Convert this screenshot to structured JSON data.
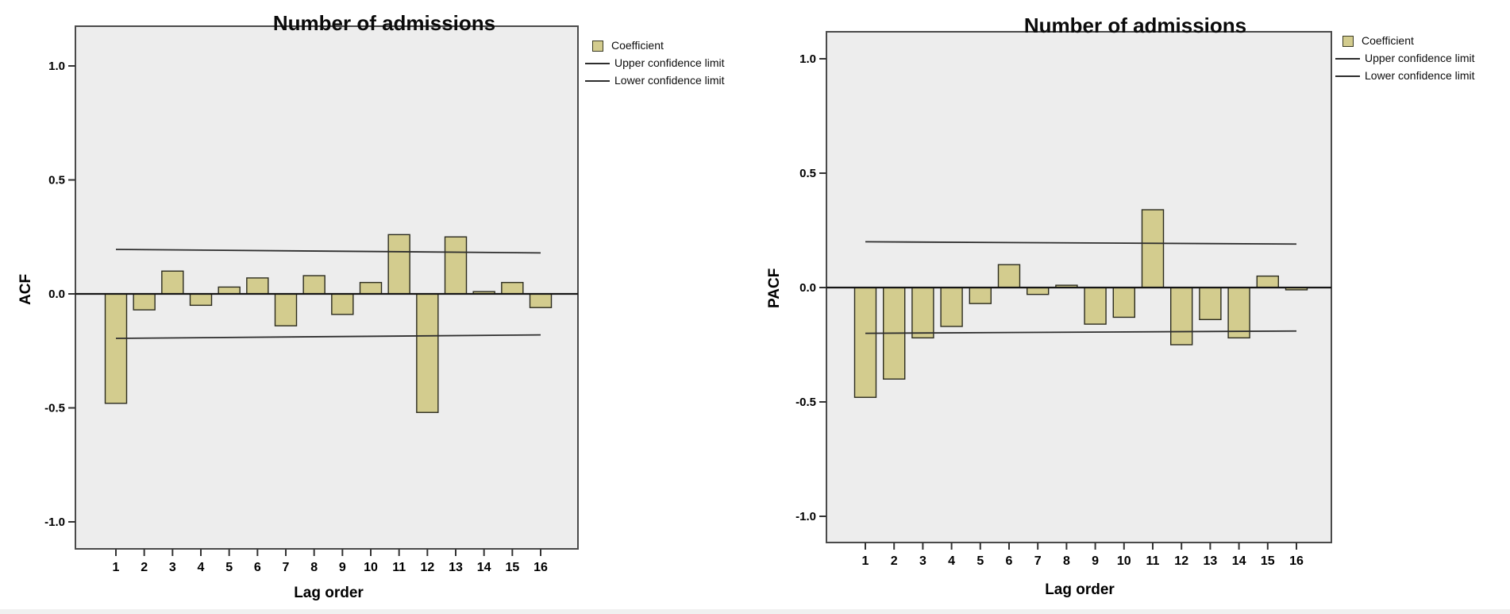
{
  "figure": {
    "background": "#ffffff"
  },
  "colors": {
    "bar_fill": "#d3cc8e",
    "bar_border": "#2b2b1e",
    "plot_background": "#ededed",
    "plot_border": "#4a4a4a",
    "confidence_line": "#2e2e2e",
    "zero_line": "#161616",
    "tick": "#333333",
    "text": "#000000"
  },
  "chart_data": [
    {
      "type": "bar",
      "title": "Number of admissions",
      "ylabel": "ACF",
      "xlabel": "Lag order",
      "categories": [
        "1",
        "2",
        "3",
        "4",
        "5",
        "6",
        "7",
        "8",
        "9",
        "10",
        "11",
        "12",
        "13",
        "14",
        "15",
        "16"
      ],
      "values": [
        -0.48,
        -0.07,
        0.1,
        -0.05,
        0.03,
        0.07,
        -0.14,
        0.08,
        -0.09,
        0.05,
        0.26,
        -0.52,
        0.25,
        0.01,
        0.05,
        -0.06
      ],
      "upper_confidence_limit": {
        "label": "Upper confidence limit",
        "start": 0.195,
        "end": 0.18
      },
      "lower_confidence_limit": {
        "label": "Lower confidence limit",
        "start": -0.195,
        "end": -0.18
      },
      "yticks": [
        {
          "value": 1.0,
          "label": "1.0"
        },
        {
          "value": 0.5,
          "label": "0.5"
        },
        {
          "value": 0.0,
          "label": "0.0"
        },
        {
          "value": -0.5,
          "label": "-0.5"
        },
        {
          "value": -1.0,
          "label": "-1.0"
        }
      ],
      "ylim": [
        -1.15,
        1.17
      ],
      "grid": false,
      "legend": {
        "position": "right",
        "items": [
          {
            "swatch": "box",
            "label": "Coefficient"
          },
          {
            "swatch": "line",
            "label": "Upper confidence limit"
          },
          {
            "swatch": "line",
            "label": "Lower confidence limit"
          }
        ]
      }
    },
    {
      "type": "bar",
      "title": "Number of admissions",
      "ylabel": "PACF",
      "xlabel": "Lag order",
      "categories": [
        "1",
        "2",
        "3",
        "4",
        "5",
        "6",
        "7",
        "8",
        "9",
        "10",
        "11",
        "12",
        "13",
        "14",
        "15",
        "16"
      ],
      "values": [
        -0.48,
        -0.4,
        -0.22,
        -0.17,
        -0.07,
        0.1,
        -0.03,
        0.01,
        -0.16,
        -0.13,
        0.34,
        -0.25,
        -0.14,
        -0.22,
        0.05,
        -0.01
      ],
      "upper_confidence_limit": {
        "label": "Upper confidence limit",
        "start": 0.2,
        "end": 0.19
      },
      "lower_confidence_limit": {
        "label": "Lower confidence limit",
        "start": -0.2,
        "end": -0.19
      },
      "yticks": [
        {
          "value": 1.0,
          "label": "1.0"
        },
        {
          "value": 0.5,
          "label": "0.5"
        },
        {
          "value": 0.0,
          "label": "0.0"
        },
        {
          "value": -0.5,
          "label": "-0.5"
        },
        {
          "value": -1.0,
          "label": "-1.0"
        }
      ],
      "ylim": [
        -1.12,
        1.12
      ],
      "grid": false,
      "legend": {
        "position": "right",
        "items": [
          {
            "swatch": "box",
            "label": "Coefficient"
          },
          {
            "swatch": "line",
            "label": "Upper confidence limit"
          },
          {
            "swatch": "line",
            "label": "Lower confidence limit"
          }
        ]
      }
    }
  ]
}
